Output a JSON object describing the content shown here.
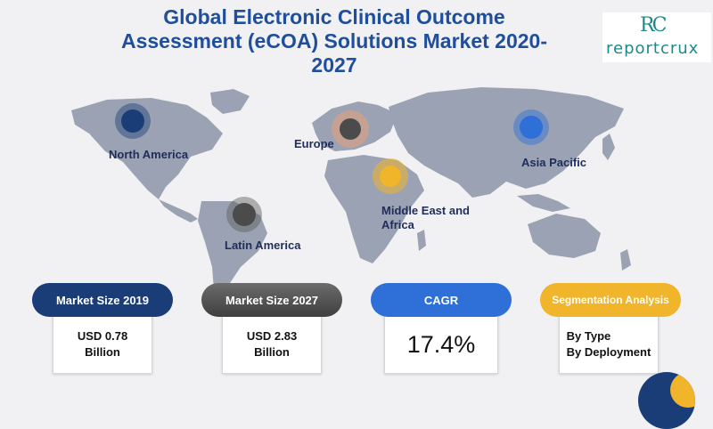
{
  "title": "Global Electronic Clinical Outcome Assessment (eCOA) Solutions Market 2020-2027",
  "logo": {
    "mark": "RC",
    "word": "reportcrux"
  },
  "regions": [
    {
      "name": "North America"
    },
    {
      "name": "Europe"
    },
    {
      "name": "Asia Pacific"
    },
    {
      "name": "Middle East and Africa"
    },
    {
      "name": "Latin America"
    }
  ],
  "stats": [
    {
      "label": "Market Size 2019",
      "value": "USD 0.78 Billion",
      "color": "#1a3d78"
    },
    {
      "label": "Market Size 2027",
      "value": "USD 2.83 Billion",
      "color": "#5a5a5a"
    },
    {
      "label": "CAGR",
      "value": "17.4%",
      "color": "#2f6fd8"
    },
    {
      "label": "Segmentation Analysis",
      "items": [
        "By Type",
        "By Deployment"
      ],
      "color": "#f0b52a"
    }
  ]
}
